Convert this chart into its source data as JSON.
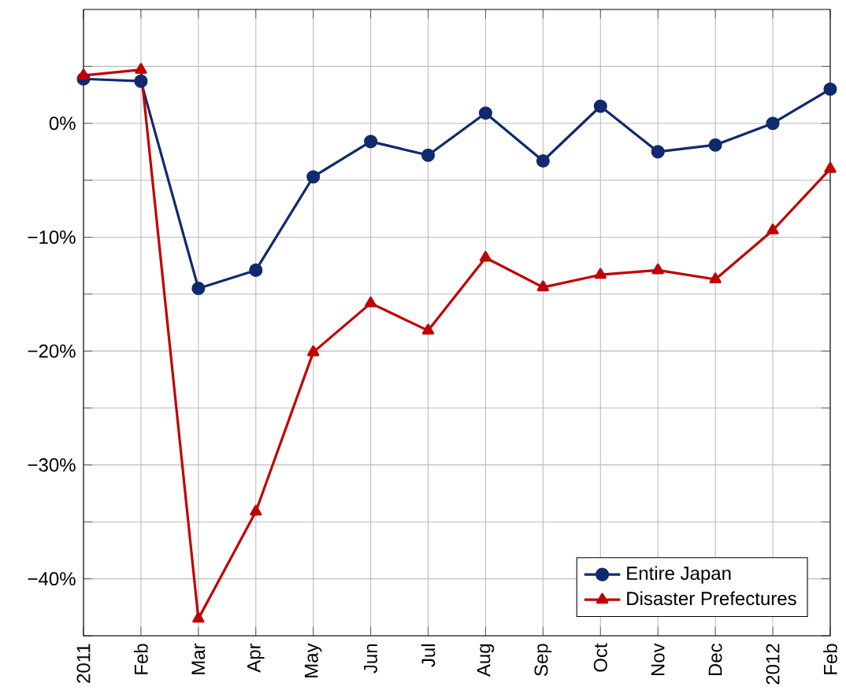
{
  "chart_data": {
    "type": "line",
    "categories": [
      "2011",
      "Feb",
      "Mar",
      "Apr",
      "May",
      "Jun",
      "Jul",
      "Aug",
      "Sep",
      "Oct",
      "Nov",
      "Dec",
      "2012",
      "Feb"
    ],
    "series": [
      {
        "name": "Entire Japan",
        "color": "#0f2a6e",
        "marker": "circle",
        "values": [
          3.9,
          3.7,
          -14.5,
          -12.9,
          -4.7,
          -1.6,
          -2.8,
          0.9,
          -3.3,
          1.5,
          -2.5,
          -1.9,
          0.0,
          3.0
        ]
      },
      {
        "name": "Disaster Prefectures",
        "color": "#c00000",
        "marker": "triangle",
        "values": [
          4.2,
          4.7,
          -43.5,
          -34.1,
          -20.1,
          -15.8,
          -18.2,
          -11.8,
          -14.4,
          -13.3,
          -12.9,
          -13.7,
          -9.4,
          -4.0
        ]
      }
    ],
    "ylim": [
      -45,
      10
    ],
    "yticks": [
      {
        "value": -45,
        "label": null
      },
      {
        "value": -40,
        "label": "−40%"
      },
      {
        "value": -35,
        "label": null
      },
      {
        "value": -30,
        "label": "−30%"
      },
      {
        "value": -25,
        "label": null
      },
      {
        "value": -20,
        "label": "−20%"
      },
      {
        "value": -15,
        "label": null
      },
      {
        "value": -10,
        "label": "−10%"
      },
      {
        "value": -5,
        "label": null
      },
      {
        "value": 0,
        "label": "0%"
      },
      {
        "value": 5,
        "label": null
      }
    ],
    "grid": true,
    "legend": "bottom right",
    "line_style": "solid"
  }
}
